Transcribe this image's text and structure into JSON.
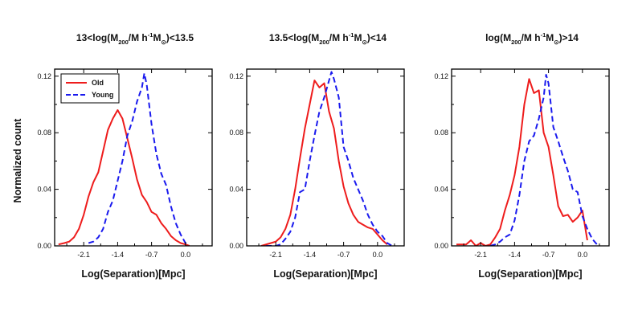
{
  "figure": {
    "ylabel": "Normalized count",
    "xlabel": "Log(Separation)[Mpc]"
  },
  "colors": {
    "old": "#ee1c1c",
    "young": "#1a1aee"
  },
  "chart_data": [
    {
      "type": "line",
      "title": "13<log(M200/M h-1M⊙)<13.5",
      "title_parts": [
        "13<log(M",
        "200",
        "/M h",
        "-1",
        "M",
        "⊙",
        ")<13.5"
      ],
      "xlabel": "Log(Separation)[Mpc]",
      "ylabel": "Normalized count",
      "xlim": [
        -2.7,
        0.55
      ],
      "ylim": [
        0,
        0.125
      ],
      "xticks": [
        -2.1,
        -1.4,
        -0.7,
        0.0
      ],
      "xtick_labels": [
        "-2.1",
        "-1.4",
        "-0.7",
        "0.0"
      ],
      "yticks": [
        0,
        0.04,
        0.08,
        0.12
      ],
      "ytick_labels": [
        "0.00",
        "0.04",
        "0.08",
        "0.12"
      ],
      "legend": {
        "position": "top-left",
        "entries": [
          "Old",
          "Young"
        ]
      },
      "series": [
        {
          "name": "Old",
          "style": "solid",
          "x": [
            -2.62,
            -2.5,
            -2.4,
            -2.3,
            -2.2,
            -2.1,
            -2.0,
            -1.9,
            -1.8,
            -1.7,
            -1.6,
            -1.5,
            -1.4,
            -1.3,
            -1.2,
            -1.1,
            -1.0,
            -0.9,
            -0.8,
            -0.7,
            -0.6,
            -0.5,
            -0.4,
            -0.3,
            -0.2,
            -0.1,
            0.0,
            0.08
          ],
          "y": [
            0.001,
            0.002,
            0.003,
            0.006,
            0.012,
            0.022,
            0.035,
            0.045,
            0.052,
            0.067,
            0.082,
            0.09,
            0.096,
            0.09,
            0.076,
            0.062,
            0.047,
            0.036,
            0.031,
            0.024,
            0.022,
            0.016,
            0.012,
            0.007,
            0.004,
            0.002,
            0.001,
            0.0
          ]
        },
        {
          "name": "Young",
          "style": "dashed",
          "x": [
            -2.0,
            -1.9,
            -1.8,
            -1.7,
            -1.6,
            -1.5,
            -1.4,
            -1.3,
            -1.2,
            -1.1,
            -1.0,
            -0.9,
            -0.85,
            -0.8,
            -0.7,
            -0.6,
            -0.5,
            -0.4,
            -0.3,
            -0.2,
            -0.1,
            0.0,
            0.05
          ],
          "y": [
            0.002,
            0.003,
            0.006,
            0.012,
            0.024,
            0.032,
            0.046,
            0.06,
            0.078,
            0.088,
            0.102,
            0.112,
            0.122,
            0.114,
            0.086,
            0.065,
            0.051,
            0.043,
            0.028,
            0.016,
            0.008,
            0.002,
            0.0
          ]
        }
      ]
    },
    {
      "type": "line",
      "title": "13.5<log(M200/M h-1M⊙)<14",
      "title_parts": [
        "13.5<log(M",
        "200",
        "/M h",
        "-1",
        "M",
        "⊙",
        ")<14"
      ],
      "xlabel": "Log(Separation)[Mpc]",
      "ylabel": "",
      "xlim": [
        -2.7,
        0.55
      ],
      "ylim": [
        0,
        0.125
      ],
      "xticks": [
        -2.1,
        -1.4,
        -0.7,
        0.0
      ],
      "xtick_labels": [
        "-2.1",
        "-1.4",
        "-0.7",
        "0.0"
      ],
      "yticks": [
        0,
        0.04,
        0.08,
        0.12
      ],
      "ytick_labels": [
        "0.00",
        "0.04",
        "0.08",
        "0.12"
      ],
      "series": [
        {
          "name": "Old",
          "style": "solid",
          "x": [
            -2.4,
            -2.2,
            -2.1,
            -2.0,
            -1.9,
            -1.8,
            -1.7,
            -1.6,
            -1.5,
            -1.4,
            -1.3,
            -1.2,
            -1.1,
            -1.0,
            -0.9,
            -0.8,
            -0.7,
            -0.6,
            -0.5,
            -0.4,
            -0.3,
            -0.2,
            -0.1,
            0.0,
            0.1,
            0.2
          ],
          "y": [
            0.0,
            0.002,
            0.003,
            0.006,
            0.012,
            0.022,
            0.04,
            0.062,
            0.083,
            0.1,
            0.117,
            0.112,
            0.115,
            0.095,
            0.083,
            0.06,
            0.042,
            0.03,
            0.022,
            0.017,
            0.015,
            0.013,
            0.012,
            0.008,
            0.004,
            0.001
          ]
        },
        {
          "name": "Young",
          "style": "dashed",
          "x": [
            -2.3,
            -2.1,
            -2.0,
            -1.9,
            -1.8,
            -1.7,
            -1.6,
            -1.5,
            -1.4,
            -1.3,
            -1.2,
            -1.1,
            -1.0,
            -0.95,
            -0.9,
            -0.8,
            -0.7,
            -0.6,
            -0.5,
            -0.4,
            -0.3,
            -0.2,
            -0.1,
            0.0,
            0.1,
            0.2,
            0.3
          ],
          "y": [
            0.0,
            0.0,
            0.001,
            0.005,
            0.01,
            0.02,
            0.038,
            0.04,
            0.06,
            0.078,
            0.095,
            0.105,
            0.117,
            0.123,
            0.118,
            0.105,
            0.07,
            0.06,
            0.048,
            0.04,
            0.032,
            0.022,
            0.015,
            0.01,
            0.007,
            0.002,
            0.0
          ]
        }
      ]
    },
    {
      "type": "line",
      "title": "log(M200/M h-1M⊙)>14",
      "title_parts": [
        "log(M",
        "200",
        "/M h",
        "-1",
        "M",
        "⊙",
        ")>14"
      ],
      "xlabel": "Log(Separation)[Mpc]",
      "ylabel": "",
      "xlim": [
        -2.7,
        0.55
      ],
      "ylim": [
        0,
        0.125
      ],
      "xticks": [
        -2.1,
        -1.4,
        -0.7,
        0.0
      ],
      "xtick_labels": [
        "-2.1",
        "-1.4",
        "-0.7",
        "0.0"
      ],
      "yticks": [
        0,
        0.04,
        0.08,
        0.12
      ],
      "ytick_labels": [
        "0.00",
        "0.04",
        "0.08",
        "0.12"
      ],
      "series": [
        {
          "name": "Old",
          "style": "solid",
          "x": [
            -2.6,
            -2.4,
            -2.3,
            -2.2,
            -2.1,
            -2.0,
            -1.9,
            -1.8,
            -1.7,
            -1.6,
            -1.5,
            -1.4,
            -1.3,
            -1.2,
            -1.1,
            -1.0,
            -0.9,
            -0.8,
            -0.7,
            -0.6,
            -0.5,
            -0.4,
            -0.3,
            -0.2,
            -0.1,
            0.0,
            0.1
          ],
          "y": [
            0.001,
            0.001,
            0.004,
            0.0,
            0.002,
            0.0,
            0.001,
            0.006,
            0.012,
            0.025,
            0.036,
            0.05,
            0.07,
            0.1,
            0.118,
            0.108,
            0.11,
            0.08,
            0.07,
            0.05,
            0.028,
            0.021,
            0.022,
            0.017,
            0.02,
            0.025,
            0.004
          ]
        },
        {
          "name": "Young",
          "style": "dashed",
          "x": [
            -1.9,
            -1.8,
            -1.7,
            -1.6,
            -1.5,
            -1.4,
            -1.3,
            -1.2,
            -1.1,
            -1.0,
            -0.9,
            -0.8,
            -0.75,
            -0.7,
            -0.6,
            -0.5,
            -0.4,
            -0.3,
            -0.2,
            -0.1,
            0.0,
            0.1,
            0.2,
            0.3
          ],
          "y": [
            0.0,
            0.001,
            0.003,
            0.006,
            0.008,
            0.018,
            0.036,
            0.06,
            0.074,
            0.078,
            0.09,
            0.105,
            0.121,
            0.115,
            0.084,
            0.074,
            0.063,
            0.053,
            0.04,
            0.038,
            0.021,
            0.012,
            0.005,
            0.001
          ]
        }
      ]
    }
  ]
}
